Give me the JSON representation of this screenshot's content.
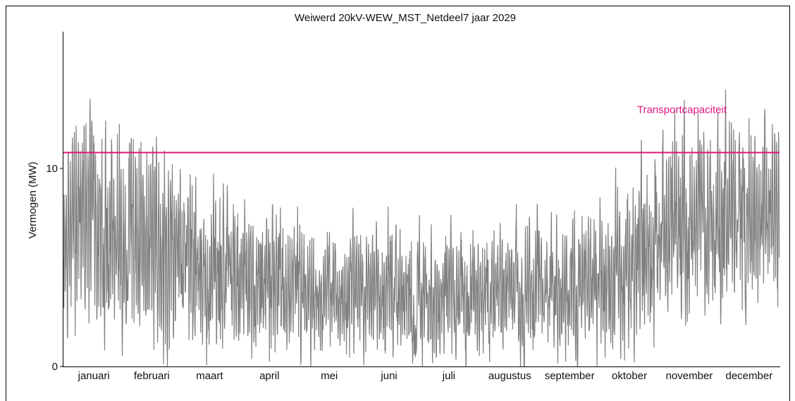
{
  "chart_data": {
    "type": "line",
    "title": "Weiwerd 20kV-WEW_MST_Netdeel7 jaar 2029",
    "xlabel": "",
    "ylabel": "Vermogen (MW)",
    "ylim": [
      0,
      17
    ],
    "yticks": [
      "0",
      "10"
    ],
    "months": [
      "januari",
      "februari",
      "maart",
      "april",
      "mei",
      "juni",
      "juli",
      "augustus",
      "september",
      "oktober",
      "november",
      "december"
    ],
    "series": [
      {
        "color": "#808080",
        "values_monthly_approx_range": [
          {
            "month": "januari",
            "min": 1,
            "max": 14.8
          },
          {
            "month": "februari",
            "min": 0,
            "max": 14.1
          },
          {
            "month": "maart",
            "min": 0,
            "max": 11.0
          },
          {
            "month": "april",
            "min": 0,
            "max": 9.5
          },
          {
            "month": "mei",
            "min": 0,
            "max": 7.5
          },
          {
            "month": "juni",
            "min": 0,
            "max": 8.8
          },
          {
            "month": "juli",
            "min": 0,
            "max": 7.8
          },
          {
            "month": "augustus",
            "min": 0,
            "max": 8.1
          },
          {
            "month": "september",
            "min": 0,
            "max": 9.0
          },
          {
            "month": "oktober",
            "min": 0,
            "max": 10.8
          },
          {
            "month": "november",
            "min": 2,
            "max": 14.9
          },
          {
            "month": "december",
            "min": 2,
            "max": 14.0
          }
        ]
      }
    ],
    "reference_lines": [
      {
        "label": "Transportcapaciteit",
        "value": 10.8,
        "color": "#e0147f"
      }
    ],
    "grid": false,
    "legend": "none"
  }
}
